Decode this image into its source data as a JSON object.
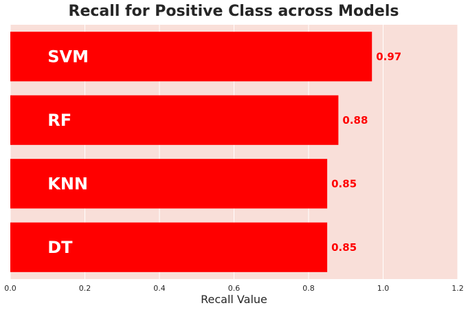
{
  "chart_data": {
    "type": "bar",
    "orientation": "horizontal",
    "title": "Recall for Positive Class across Models",
    "xlabel": "Recall Value",
    "ylabel": "",
    "xlim": [
      0,
      1.2
    ],
    "xticks": [
      "0.0",
      "0.2",
      "0.4",
      "0.6",
      "0.8",
      "1.0",
      "1.2"
    ],
    "categories": [
      "SVM",
      "RF",
      "KNN",
      "DT"
    ],
    "values": [
      0.97,
      0.88,
      0.85,
      0.85
    ],
    "value_labels": [
      "0.97",
      "0.88",
      "0.85",
      "0.85"
    ],
    "grid": true,
    "colors": {
      "bar": "#ff0000",
      "plot_background": "#f9dfd9",
      "grid": "#ffffff",
      "value_label": "#ff0000",
      "category_label": "#ffffff",
      "text": "#262626"
    }
  }
}
